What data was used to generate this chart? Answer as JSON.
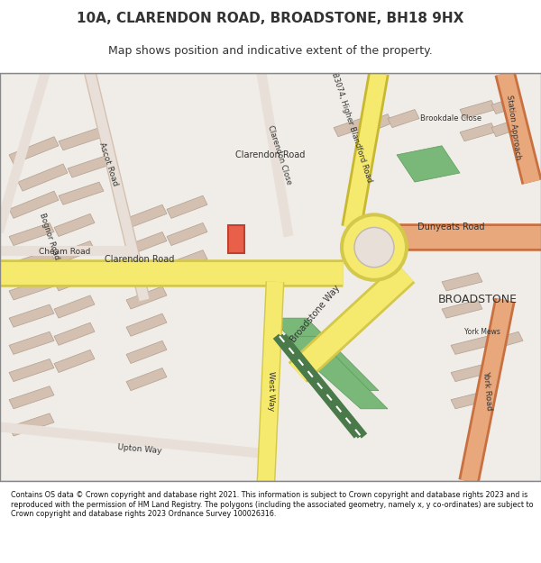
{
  "title_line1": "10A, CLARENDON ROAD, BROADSTONE, BH18 9HX",
  "title_line2": "Map shows position and indicative extent of the property.",
  "footer_text": "Contains OS data © Crown copyright and database right 2021. This information is subject to Crown copyright and database rights 2023 and is reproduced with the permission of HM Land Registry. The polygons (including the associated geometry, namely x, y co-ordinates) are subject to Crown copyright and database rights 2023 Ordnance Survey 100026316.",
  "bg_color": "#f0ede8",
  "road_color_main": "#f5e96e",
  "road_color_stroke": "#d4c84a",
  "road_a_color": "#e8a87c",
  "road_a_stroke": "#c97040",
  "road_b_color": "#f5e96e",
  "road_b_stroke": "#c8b830",
  "green_area_color": "#7ab87a",
  "building_color": "#d4c0b0",
  "building_stroke": "#b0a090",
  "highlight_color": "#e8604a",
  "highlight_stroke": "#c04030",
  "roundabout_color": "#e8e0d8",
  "roundabout_stroke": "#c0b8b0",
  "text_color": "#333333",
  "footer_bg": "#ffffff",
  "map_border_color": "#888888",
  "railway_color": "#4a7a4a",
  "railway_stripe": "#ffffff"
}
